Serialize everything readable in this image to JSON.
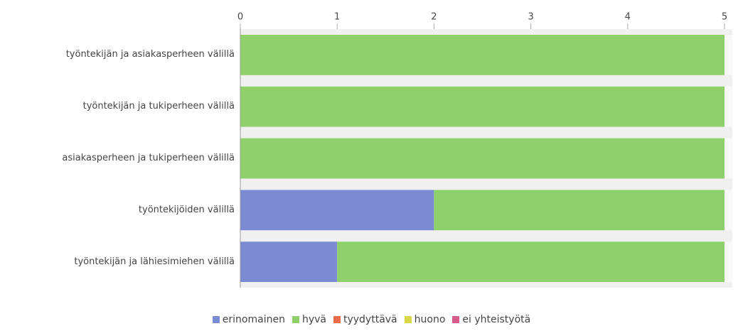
{
  "chart_data": {
    "type": "stacked_barh",
    "categories": [
      "työntekijän ja asiakasperheen välillä",
      "työntekijän ja tukiperheen välillä",
      "asiakasperheen ja tukiperheen välillä",
      "työntekijöiden välillä",
      "työntekijän ja lähiesimiehen välillä"
    ],
    "series": [
      {
        "name": "erinomainen",
        "color": "#7b8bd3",
        "values": [
          0,
          0,
          0,
          2,
          1
        ]
      },
      {
        "name": "hyvä",
        "color": "#8ed16a",
        "values": [
          5,
          5,
          5,
          3,
          4
        ]
      },
      {
        "name": "tyydyttävä",
        "color": "#ee6b4c",
        "values": [
          0,
          0,
          0,
          0,
          0
        ]
      },
      {
        "name": "huono",
        "color": "#d9d74c",
        "values": [
          0,
          0,
          0,
          0,
          0
        ]
      },
      {
        "name": "ei yhteistyötä",
        "color": "#d65c8d",
        "values": [
          0,
          0,
          0,
          0,
          0
        ]
      }
    ],
    "xlim": [
      0,
      5
    ],
    "xticks": [
      0,
      1,
      2,
      3,
      4,
      5
    ],
    "grid": false,
    "legend": "bottom"
  }
}
